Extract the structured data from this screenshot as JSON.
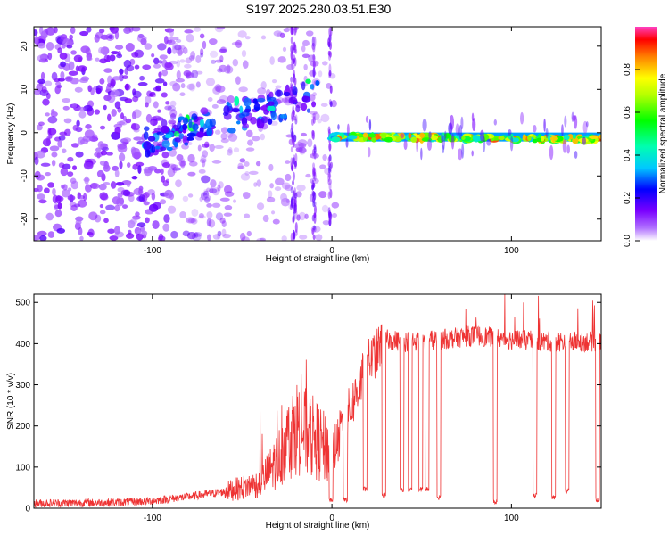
{
  "page_title": "S197.2025.280.03.51.E30",
  "chart_data": [
    {
      "type": "heatmap",
      "title": "S197.2025.280.03.51.E30",
      "xlabel": "Height of straight line (km)",
      "ylabel": "Frequency (Hz)",
      "xlim": [
        -166,
        150
      ],
      "ylim": [
        -25,
        24.5
      ],
      "x_ticks": [
        -100,
        0,
        100
      ],
      "x_tick_labels": [
        "-100",
        "0",
        "100"
      ],
      "y_ticks": [
        -20,
        -10,
        0,
        10,
        20
      ],
      "y_tick_labels": [
        "-20",
        "-10",
        "0",
        "10",
        "20"
      ],
      "colorbar": {
        "label": "Normalized spectral amplitude",
        "range": [
          0,
          1
        ],
        "ticks": [
          0,
          0.2,
          0.4,
          0.6,
          0.8
        ],
        "tick_labels": [
          "0.0",
          "0.2",
          "0.4",
          "0.6",
          "0.8"
        ]
      },
      "features": [
        {
          "name": "noise",
          "x_range": [
            -166,
            0
          ],
          "y_range": [
            -25,
            24
          ],
          "amplitude": 0.15
        },
        {
          "name": "rising-band",
          "x_range": [
            -105,
            -8
          ],
          "y_start": -2,
          "y_end": 9,
          "amplitude": 0.25
        },
        {
          "name": "flat-band",
          "x_range": [
            0,
            150
          ],
          "y_start": -1,
          "y_end": -1.5,
          "amplitude": 0.8
        }
      ]
    },
    {
      "type": "line",
      "xlabel": "Height of straight line (km)",
      "ylabel": "SNR (10 * v/v)",
      "xlim": [
        -166,
        150
      ],
      "ylim": [
        0,
        520
      ],
      "x_ticks": [
        -100,
        0,
        100
      ],
      "x_tick_labels": [
        "-100",
        "0",
        "100"
      ],
      "y_ticks": [
        0,
        100,
        200,
        300,
        400,
        500
      ],
      "y_tick_labels": [
        "0",
        "100",
        "200",
        "300",
        "400",
        "500"
      ],
      "series": [
        {
          "name": "SNR",
          "color": "#ee3333",
          "x": [
            -166,
            -120,
            -100,
            -80,
            -60,
            -40,
            -30,
            -20,
            -10,
            0,
            10,
            20,
            25,
            30,
            40,
            60,
            80,
            100,
            120,
            150
          ],
          "values": [
            12,
            14,
            18,
            28,
            40,
            60,
            120,
            200,
            170,
            130,
            240,
            350,
            380,
            410,
            405,
            410,
            420,
            410,
            405,
            405
          ]
        }
      ],
      "dropouts": [
        {
          "x": -0.5,
          "low": 15
        },
        {
          "x": 7.5,
          "low": 15
        },
        {
          "x": 18.5,
          "low": 40
        },
        {
          "x": 29,
          "low": 25
        },
        {
          "x": 39,
          "low": 40
        },
        {
          "x": 43.5,
          "low": 40
        },
        {
          "x": 49.5,
          "low": 40
        },
        {
          "x": 53,
          "low": 40
        },
        {
          "x": 59.5,
          "low": 20
        },
        {
          "x": 91,
          "low": 10
        },
        {
          "x": 113,
          "low": 25
        },
        {
          "x": 123.5,
          "low": 20
        },
        {
          "x": 131,
          "low": 35
        },
        {
          "x": 148,
          "low": 15
        }
      ]
    }
  ]
}
